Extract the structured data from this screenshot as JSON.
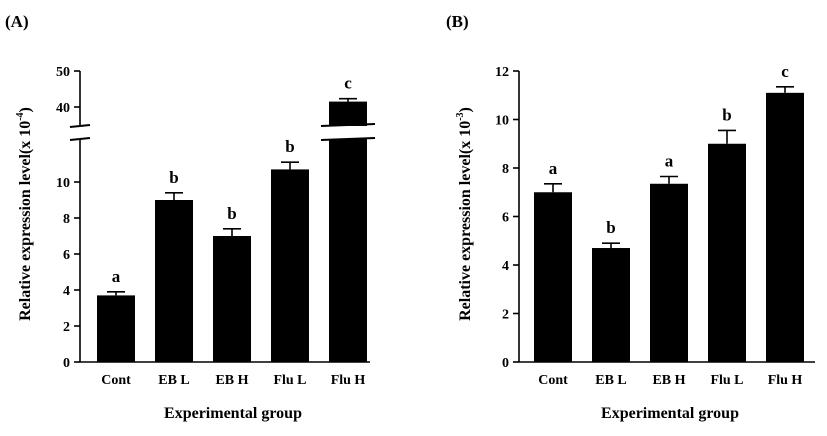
{
  "chart_data": [
    {
      "panel_label": "(A)",
      "type": "bar",
      "categories": [
        "Cont",
        "EB L",
        "EB H",
        "Flu L",
        "Flu H"
      ],
      "values": [
        3.7,
        9.0,
        7.0,
        10.7,
        41.5
      ],
      "errors": [
        0.2,
        0.4,
        0.4,
        0.4,
        0.8
      ],
      "significance": [
        "a",
        "b",
        "b",
        "b",
        "c"
      ],
      "xlabel": "Experimental group",
      "ylabel_main": "Relative expression level(x 10",
      "ylabel_exp": "-4",
      "ylabel_close": ")",
      "ylim": [
        0,
        50
      ],
      "axis_break": [
        12,
        35
      ],
      "yticks_lower": [
        "0",
        "2",
        "4",
        "6",
        "8",
        "10"
      ],
      "yticks_upper": [
        "40",
        "50"
      ],
      "bar_color": "#000000"
    },
    {
      "panel_label": "(B)",
      "type": "bar",
      "categories": [
        "Cont",
        "EB L",
        "EB H",
        "Flu L",
        "Flu H"
      ],
      "values": [
        7.0,
        4.7,
        7.35,
        9.0,
        11.1
      ],
      "errors": [
        0.35,
        0.2,
        0.3,
        0.55,
        0.25
      ],
      "significance": [
        "a",
        "b",
        "a",
        "b",
        "c"
      ],
      "xlabel": "Experimental group",
      "ylabel_main": "Relative expression level(x 10",
      "ylabel_exp": "-3",
      "ylabel_close": ")",
      "ylim": [
        0,
        12
      ],
      "yticks": [
        "0",
        "2",
        "4",
        "6",
        "8",
        "10",
        "12"
      ],
      "bar_color": "#000000"
    }
  ]
}
